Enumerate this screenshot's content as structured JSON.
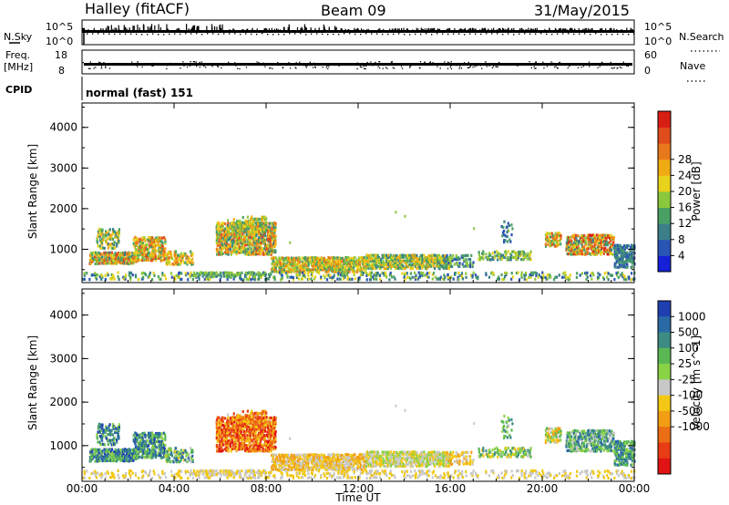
{
  "header": {
    "station": "Halley (fitACF)",
    "beam": "Beam 09",
    "date": "31/May/2015"
  },
  "status_panels": {
    "nsky_label": "N.Sky",
    "nsearch_label": "N.Search",
    "nsky_ticks": [
      "10^5",
      "10^0"
    ],
    "nsearch_ticks": [
      "10^5",
      "10^0"
    ],
    "freq_label_line1": "Freq.",
    "freq_label_line2": "[MHz]",
    "freq_ticks": [
      "18",
      "8"
    ],
    "nave_label": "Nave",
    "nave_ticks": [
      "60",
      "0"
    ],
    "cpid_label": "CPID",
    "cpid_value": "normal (fast) 151"
  },
  "chart_data": [
    {
      "type": "heatmap",
      "name": "power",
      "ylabel": "Slant Range [km]",
      "ylim": [
        180,
        4600
      ],
      "yticks": [
        1000,
        2000,
        3000,
        4000
      ],
      "colorbar": {
        "label": "Power [dB]",
        "ticks": [
          "4",
          "8",
          "12",
          "16",
          "20",
          "24",
          "28"
        ],
        "colors": [
          "#1520d8",
          "#2a55b4",
          "#3c7f88",
          "#4aa064",
          "#8cc83c",
          "#e8d21c",
          "#f0aa14",
          "#e8781c",
          "#e04c1c",
          "#d81e14"
        ]
      }
    },
    {
      "type": "heatmap",
      "name": "velocity",
      "ylabel": "Slant Range [km]",
      "ylim": [
        180,
        4600
      ],
      "yticks": [
        1000,
        2000,
        3000,
        4000
      ],
      "colorbar": {
        "label": "Velocity [m s^-1]",
        "ticks": [
          "1000",
          "500",
          "100",
          "25",
          "-25",
          "-100",
          "-500",
          "-1000"
        ],
        "colors": [
          "#1f3fb0",
          "#2a6aa4",
          "#3c8c84",
          "#5ab854",
          "#8ad248",
          "#c8c8c8",
          "#f2c814",
          "#f29e14",
          "#ec6e14",
          "#e83c14",
          "#e01414"
        ]
      }
    }
  ],
  "time_axis": {
    "label": "Time UT",
    "ticks": [
      "00:00",
      "04:00",
      "08:00",
      "12:00",
      "16:00",
      "20:00",
      "00:00"
    ]
  }
}
